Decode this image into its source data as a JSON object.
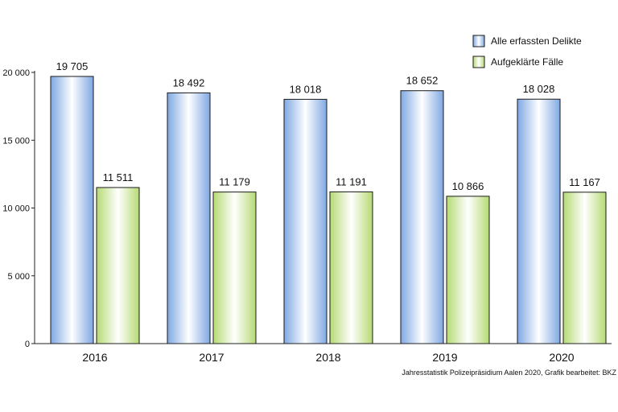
{
  "chart_data": {
    "type": "bar",
    "categories": [
      "2016",
      "2017",
      "2018",
      "2019",
      "2020"
    ],
    "series": [
      {
        "name": "Alle erfassten Delikte",
        "values": [
          19705,
          18492,
          18018,
          18652,
          18028
        ],
        "labels": [
          "19 705",
          "18 492",
          "18 018",
          "18 652",
          "18 028"
        ],
        "color": "#8fb4e6"
      },
      {
        "name": "Aufgeklärte Fälle",
        "values": [
          11511,
          11179,
          11191,
          10866,
          11167
        ],
        "labels": [
          "11 511",
          "11 179",
          "11 191",
          "10 866",
          "11 167"
        ],
        "color": "#c2e089"
      }
    ],
    "yticks": [
      0,
      5000,
      10000,
      15000,
      20000
    ],
    "ytick_labels": [
      "0",
      "5 000",
      "10 000",
      "15 000",
      "20 000"
    ],
    "ylim": [
      0,
      20000
    ],
    "legend": "top-right",
    "grid": false,
    "source": "Jahresstatistik Polizeipräsidium Aalen 2020, Grafik bearbeitet: BKZ"
  }
}
